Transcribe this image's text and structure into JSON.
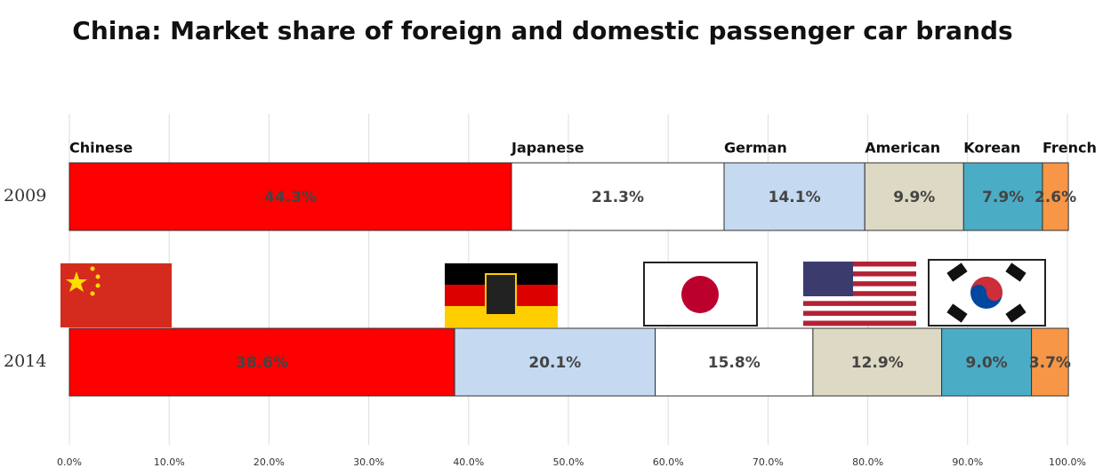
{
  "chart_data": {
    "type": "stacked-bar-rows",
    "title": "China: Market share of foreign and domestic passenger car brands",
    "xlim": [
      0,
      100
    ],
    "xticks": [
      {
        "value": 0,
        "label": "0.0%"
      },
      {
        "value": 10,
        "label": "10.0%"
      },
      {
        "value": 20,
        "label": "20.0%"
      },
      {
        "value": 30,
        "label": "30.0%"
      },
      {
        "value": 40,
        "label": "40.0%"
      },
      {
        "value": 50,
        "label": "50.0%"
      },
      {
        "value": 60,
        "label": "60.0%"
      },
      {
        "value": 70,
        "label": "70.0%"
      },
      {
        "value": 80,
        "label": "80.0%"
      },
      {
        "value": 90,
        "label": "90.0%"
      },
      {
        "value": 100,
        "label": "100.0%"
      }
    ],
    "grid": true,
    "rows": [
      {
        "label": "2009",
        "segments": [
          {
            "name": "Chinese",
            "color": "#ff0000",
            "value": 44.3,
            "value_label": "44.3%"
          },
          {
            "name": "Japanese",
            "color": "#ffffff",
            "value": 21.3,
            "value_label": "21.3%"
          },
          {
            "name": "German",
            "color": "#c5d9f1",
            "value": 14.1,
            "value_label": "14.1%"
          },
          {
            "name": "American",
            "color": "#ddd9c4",
            "value": 9.9,
            "value_label": "9.9%"
          },
          {
            "name": "Korean",
            "color": "#4bacc6",
            "value": 7.9,
            "value_label": "7.9%"
          },
          {
            "name": "French",
            "color": "#f79646",
            "value": 2.6,
            "value_label": "2.6%"
          }
        ]
      },
      {
        "label": "2014",
        "segments": [
          {
            "color": "#ff0000",
            "value": 38.6,
            "value_label": "38.6%"
          },
          {
            "color": "#c5d9f1",
            "value": 20.1,
            "value_label": "20.1%"
          },
          {
            "color": "#ffffff",
            "value": 15.8,
            "value_label": "15.8%"
          },
          {
            "color": "#ddd9c4",
            "value": 12.9,
            "value_label": "12.9%"
          },
          {
            "color": "#4bacc6",
            "value": 9.0,
            "value_label": "9.0%"
          },
          {
            "color": "#f79646",
            "value": 3.7,
            "value_label": "3.7%"
          }
        ]
      }
    ]
  }
}
